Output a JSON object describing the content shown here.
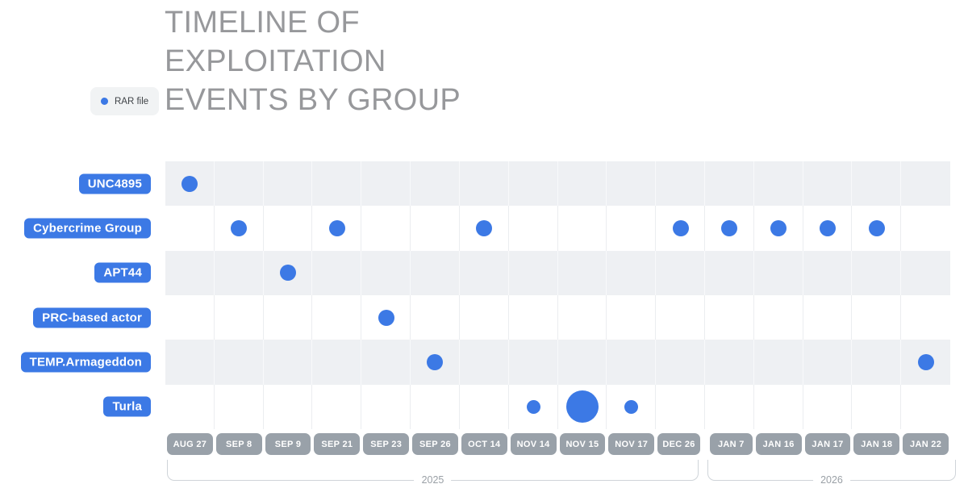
{
  "title": "TIMELINE OF\nEXPLOITATION\nEVENTS BY GROUP",
  "legend": {
    "label": "RAR file",
    "marker": "rar-file-dot",
    "color": "#3c79e5"
  },
  "colors": {
    "accent_blue": "#3c79e5",
    "row_shade": "#eef0f3",
    "date_pill_gray": "#99a1a9",
    "title_text": "#97989b",
    "bracket_line": "#cfd4d9",
    "year_text": "#9aa0a6",
    "legend_bg": "#f1f3f4",
    "legend_text": "#3f4347"
  },
  "chart_data": {
    "type": "scatter",
    "subtype": "timeline-dot-matrix",
    "title": "TIMELINE OF EXPLOITATION EVENTS BY GROUP",
    "legend_entries": [
      {
        "label": "RAR file",
        "marker": "dot",
        "color": "#3c79e5"
      }
    ],
    "legend_position": "top-left",
    "grid": "on",
    "y_categories": [
      "UNC4895",
      "Cybercrime Group",
      "APT44",
      "PRC-based actor",
      "TEMP.Armageddon",
      "Turla"
    ],
    "x_categories": [
      "AUG 27",
      "SEP 8",
      "SEP 9",
      "SEP 21",
      "SEP 23",
      "SEP 26",
      "OCT 14",
      "NOV 14",
      "NOV 15",
      "NOV 17",
      "DEC 26",
      "JAN 7",
      "JAN 16",
      "JAN 17",
      "JAN 18",
      "JAN 22"
    ],
    "year_groups": [
      {
        "label": "2025",
        "from_index": 0,
        "to_index": 10
      },
      {
        "label": "2026",
        "from_index": 11,
        "to_index": 15
      }
    ],
    "points": [
      {
        "group": "UNC4895",
        "date": "AUG 27",
        "size": "regular"
      },
      {
        "group": "Cybercrime Group",
        "date": "SEP 8",
        "size": "regular"
      },
      {
        "group": "Cybercrime Group",
        "date": "SEP 21",
        "size": "regular"
      },
      {
        "group": "Cybercrime Group",
        "date": "OCT 14",
        "size": "regular"
      },
      {
        "group": "Cybercrime Group",
        "date": "DEC 26",
        "size": "regular"
      },
      {
        "group": "Cybercrime Group",
        "date": "JAN 7",
        "size": "regular"
      },
      {
        "group": "Cybercrime Group",
        "date": "JAN 16",
        "size": "regular"
      },
      {
        "group": "Cybercrime Group",
        "date": "JAN 17",
        "size": "regular"
      },
      {
        "group": "Cybercrime Group",
        "date": "JAN 18",
        "size": "regular"
      },
      {
        "group": "APT44",
        "date": "SEP 9",
        "size": "regular"
      },
      {
        "group": "PRC-based actor",
        "date": "SEP 23",
        "size": "regular"
      },
      {
        "group": "TEMP.Armageddon",
        "date": "SEP 26",
        "size": "regular"
      },
      {
        "group": "TEMP.Armageddon",
        "date": "JAN 22",
        "size": "regular"
      },
      {
        "group": "Turla",
        "date": "NOV 14",
        "size": "small"
      },
      {
        "group": "Turla",
        "date": "NOV 15",
        "size": "large"
      },
      {
        "group": "Turla",
        "date": "NOV 17",
        "size": "small"
      }
    ],
    "marker_sizes_px": {
      "regular": 20,
      "small": 17,
      "large": 40
    }
  }
}
